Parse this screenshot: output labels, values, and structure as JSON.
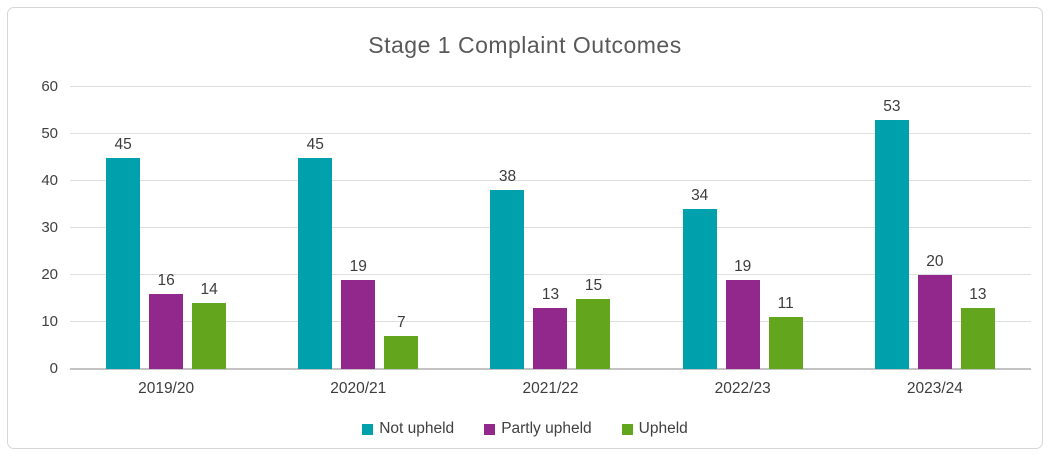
{
  "chart_data": {
    "type": "bar",
    "title": "Stage 1 Complaint Outcomes",
    "categories": [
      "2019/20",
      "2020/21",
      "2021/22",
      "2022/23",
      "2023/24"
    ],
    "series": [
      {
        "name": "Not upheld",
        "color": "#00A0AC",
        "values": [
          45,
          45,
          38,
          34,
          53
        ]
      },
      {
        "name": "Partly upheld",
        "color": "#92278C",
        "values": [
          16,
          19,
          13,
          19,
          20
        ]
      },
      {
        "name": "Upheld",
        "color": "#64A51E",
        "values": [
          14,
          7,
          15,
          11,
          13
        ]
      }
    ],
    "y_ticks": [
      0,
      10,
      20,
      30,
      40,
      50,
      60
    ],
    "ylim": [
      0,
      60
    ],
    "xlabel": "",
    "ylabel": "",
    "grid": true,
    "legend_position": "bottom",
    "data_labels": true
  },
  "style": {
    "title_color": "#595959",
    "label_color": "#3d3d3d",
    "gridline_color": "#dedede",
    "axis_line_color": "#c3c3c3",
    "card_border_color": "#d6d6d6"
  }
}
